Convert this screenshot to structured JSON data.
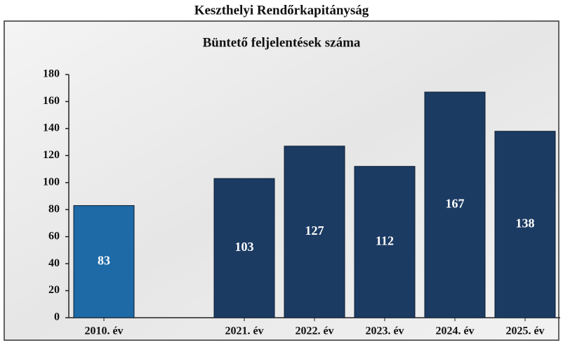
{
  "chart_data": {
    "type": "bar",
    "title": "Keszthelyi Rendőrkapitányság",
    "subtitle": "Büntető feljelentések száma",
    "categories": [
      "2010. év",
      null,
      "2021. év",
      "2022. év",
      "2023. év",
      "2024. év",
      "2025. év"
    ],
    "values": [
      83,
      null,
      103,
      127,
      112,
      167,
      138
    ],
    "colors": [
      "#1d6aa6",
      null,
      "#1c3b63",
      "#1c3b63",
      "#1c3b63",
      "#1c3b63",
      "#1c3b63"
    ],
    "ylim": [
      0,
      180
    ],
    "yticks": [
      0,
      20,
      40,
      60,
      80,
      100,
      120,
      140,
      160,
      180
    ],
    "grid": false
  }
}
